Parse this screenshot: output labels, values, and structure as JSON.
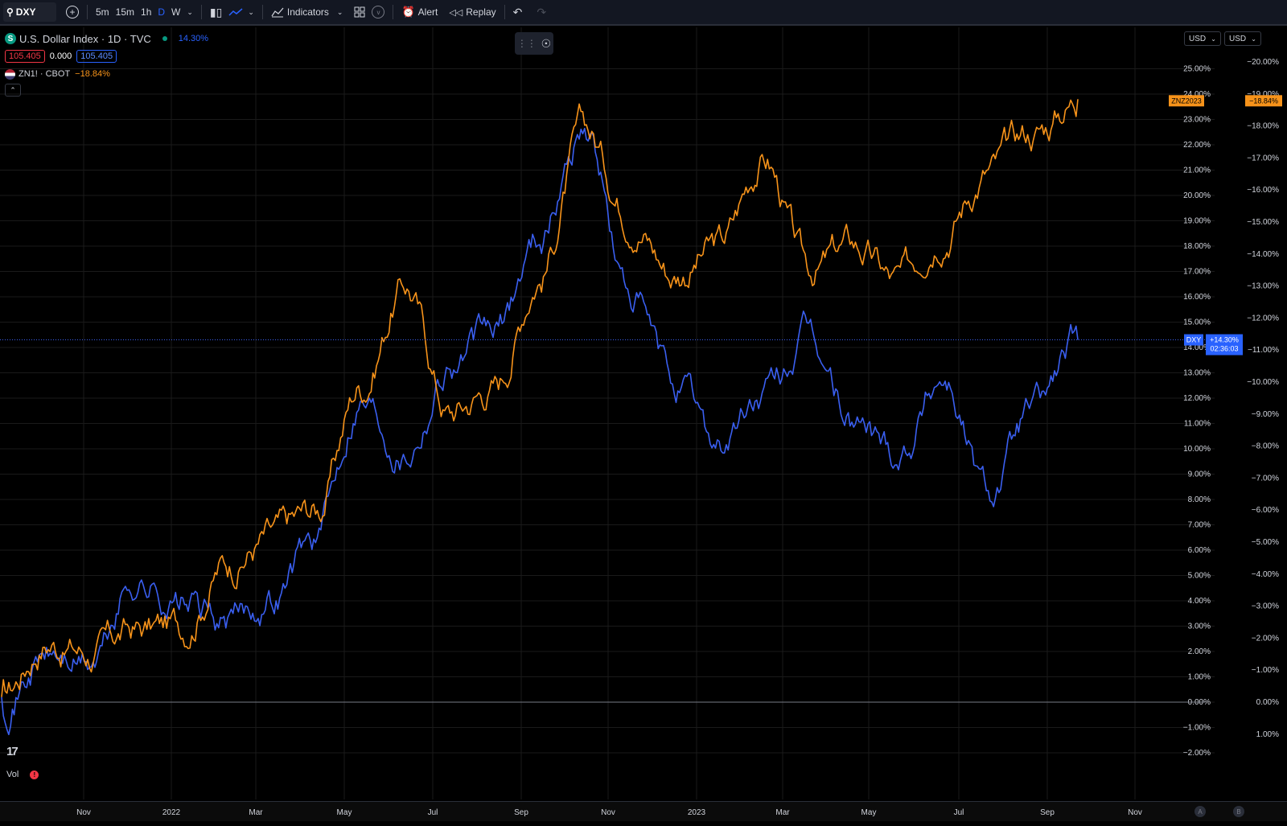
{
  "toolbar": {
    "symbol": "DXY",
    "intervals": [
      "5m",
      "15m",
      "1h",
      "D",
      "W"
    ],
    "active_interval": "D",
    "indicators_label": "Indicators",
    "alert_label": "Alert",
    "replay_label": "Replay"
  },
  "legend": {
    "main_title": "U.S. Dollar Index · 1D · TVC",
    "main_change": "14.30%",
    "bid": "105.405",
    "spread": "0.000",
    "ask": "105.405",
    "compare_title": "ZN1! · CBOT",
    "compare_change": "−18.84%"
  },
  "currency_left": "USD",
  "currency_right": "USD",
  "colors": {
    "dxy": "#3a5ff0",
    "zn": "#f7931a",
    "background": "#000000",
    "grid": "#1a1a1a",
    "axis_text": "#d1d4dc"
  },
  "icons": {
    "search": "search-icon",
    "add": "plus-circle-icon",
    "chart_type": "candles-icon",
    "line": "line-icon",
    "indicators": "indicators-icon",
    "layout": "layout-icon",
    "alert": "alarm-icon",
    "replay": "rewind-icon",
    "undo": "undo-icon",
    "redo": "redo-icon",
    "logo": "tradingview-logo"
  },
  "price_labels": {
    "zn_tag": "ZNZ2023",
    "zn_value": "−18.84%",
    "dxy_tag": "DXY",
    "dxy_value": "+14.30%",
    "countdown": "02:36:03"
  },
  "bottom": {
    "vol_label": "Vol"
  },
  "chart_data": {
    "type": "line",
    "x_ticks": [
      "Nov",
      "2022",
      "Mar",
      "May",
      "Jul",
      "Sep",
      "Nov",
      "2023",
      "Mar",
      "May",
      "Jul",
      "Sep",
      "Nov"
    ],
    "y_left_ticks": [
      "25.00%",
      "24.00%",
      "23.00%",
      "22.00%",
      "21.00%",
      "20.00%",
      "19.00%",
      "18.00%",
      "17.00%",
      "16.00%",
      "15.00%",
      "14.00%",
      "13.00%",
      "12.00%",
      "11.00%",
      "10.00%",
      "9.00%",
      "8.00%",
      "7.00%",
      "6.00%",
      "5.00%",
      "4.00%",
      "3.00%",
      "2.00%",
      "1.00%",
      "0.00%",
      "−1.00%",
      "−2.00%"
    ],
    "y_right_ticks": [
      "−20.00%",
      "−19.00%",
      "−18.00%",
      "−17.00%",
      "−16.00%",
      "−15.00%",
      "−14.00%",
      "−13.00%",
      "−12.00%",
      "−11.00%",
      "−10.00%",
      "−9.00%",
      "−8.00%",
      "−7.00%",
      "−6.00%",
      "−5.00%",
      "−4.00%",
      "−3.00%",
      "−2.00%",
      "−1.00%",
      "0.00%",
      "1.00%"
    ],
    "y_left_range": [
      -2,
      25.5
    ],
    "series": [
      {
        "name": "DXY",
        "axis": "left",
        "x": [
          "2021-09",
          "2021-10",
          "2021-11",
          "2021-12",
          "2022-01",
          "2022-02",
          "2022-03",
          "2022-04",
          "2022-05",
          "2022-06",
          "2022-07",
          "2022-08",
          "2022-09",
          "2022-10",
          "2022-11",
          "2022-12",
          "2023-01",
          "2023-02",
          "2023-03",
          "2023-04",
          "2023-05",
          "2023-06",
          "2023-07",
          "2023-08",
          "2023-09"
        ],
        "values": [
          0.2,
          1.8,
          1.5,
          4.8,
          3.9,
          3.0,
          4.2,
          6.5,
          12.2,
          10.2,
          13.5,
          14.5,
          18.5,
          22.8,
          16.0,
          12.5,
          10.2,
          12.0,
          14.2,
          11.0,
          10.0,
          13.0,
          8.3,
          11.5,
          14.3
        ]
      },
      {
        "name": "ZN1! · CBOT",
        "axis": "left",
        "x": [
          "2021-09",
          "2021-10",
          "2021-11",
          "2021-12",
          "2022-01",
          "2022-02",
          "2022-03",
          "2022-04",
          "2022-05",
          "2022-06",
          "2022-07",
          "2022-08",
          "2022-09",
          "2022-10",
          "2022-11",
          "2022-12",
          "2023-01",
          "2023-02",
          "2023-03",
          "2023-04",
          "2023-05",
          "2023-06",
          "2023-07",
          "2023-08",
          "2023-09"
        ],
        "values": [
          0.2,
          2.5,
          2.0,
          2.8,
          3.0,
          5.5,
          6.5,
          7.5,
          12.5,
          16.5,
          11.5,
          12.5,
          17.0,
          22.5,
          19.5,
          17.0,
          18.0,
          21.5,
          17.0,
          18.0,
          16.5,
          19.0,
          21.0,
          22.5,
          23.8
        ]
      }
    ]
  }
}
